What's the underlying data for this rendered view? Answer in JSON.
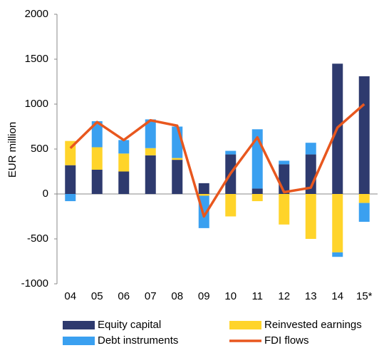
{
  "chart_data": {
    "type": "bar",
    "stacked": true,
    "y_label": "EUR million",
    "categories": [
      "04",
      "05",
      "06",
      "07",
      "08",
      "09",
      "10",
      "11",
      "12",
      "13",
      "14",
      "15*"
    ],
    "series": [
      {
        "name": "Equity capital",
        "color": "#2e3a6e",
        "type": "bar",
        "values": [
          320,
          270,
          250,
          430,
          380,
          120,
          440,
          60,
          330,
          440,
          1450,
          1310
        ]
      },
      {
        "name": "Reinvested earnings",
        "color": "#ffd42a",
        "type": "bar",
        "values": [
          270,
          250,
          200,
          80,
          20,
          -20,
          -250,
          -80,
          -340,
          -500,
          -650,
          -100
        ]
      },
      {
        "name": "Debt instruments",
        "color": "#3aa0f0",
        "type": "bar",
        "values": [
          -80,
          290,
          150,
          320,
          350,
          -360,
          40,
          660,
          40,
          130,
          -50,
          -210
        ]
      },
      {
        "name": "FDI flows",
        "color": "#e8571e",
        "type": "line",
        "values": [
          510,
          800,
          600,
          820,
          760,
          -250,
          230,
          630,
          20,
          70,
          740,
          1000
        ]
      }
    ],
    "ylim": [
      -1000,
      2000
    ],
    "yticks": [
      -1000,
      -500,
      0,
      500,
      1000,
      1500,
      2000
    ]
  }
}
